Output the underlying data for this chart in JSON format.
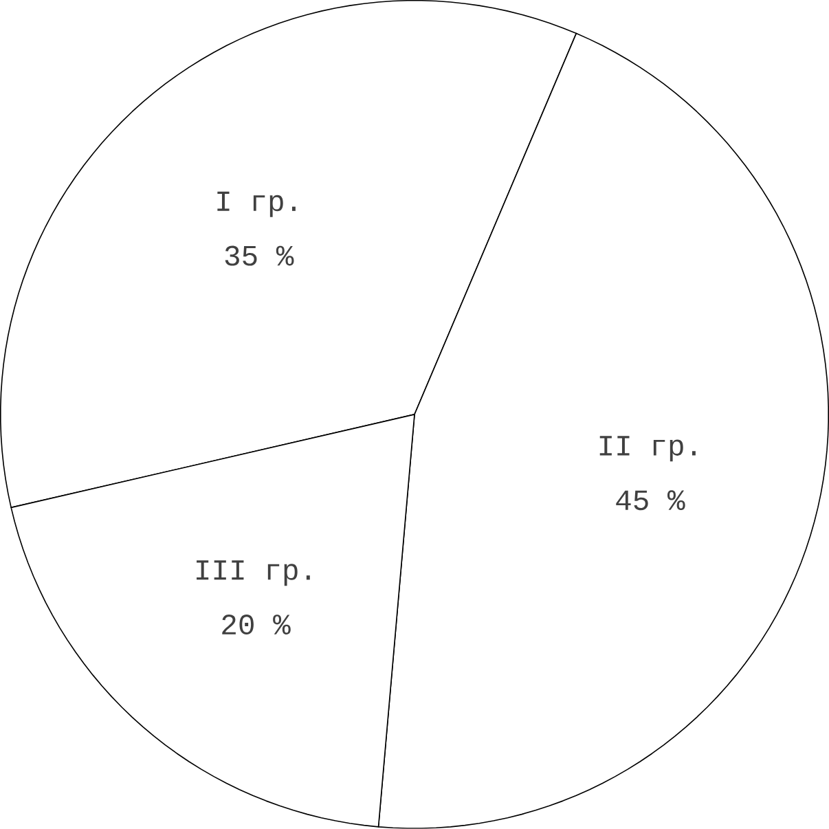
{
  "chart_data": {
    "type": "pie",
    "categories": [
      "I гр.",
      "II гр.",
      "III гр."
    ],
    "values": [
      35,
      45,
      20
    ],
    "value_labels": [
      "35 %",
      "45 %",
      "20 %"
    ],
    "colors": [
      "#ffffff",
      "#ffffff",
      "#ffffff"
    ]
  }
}
